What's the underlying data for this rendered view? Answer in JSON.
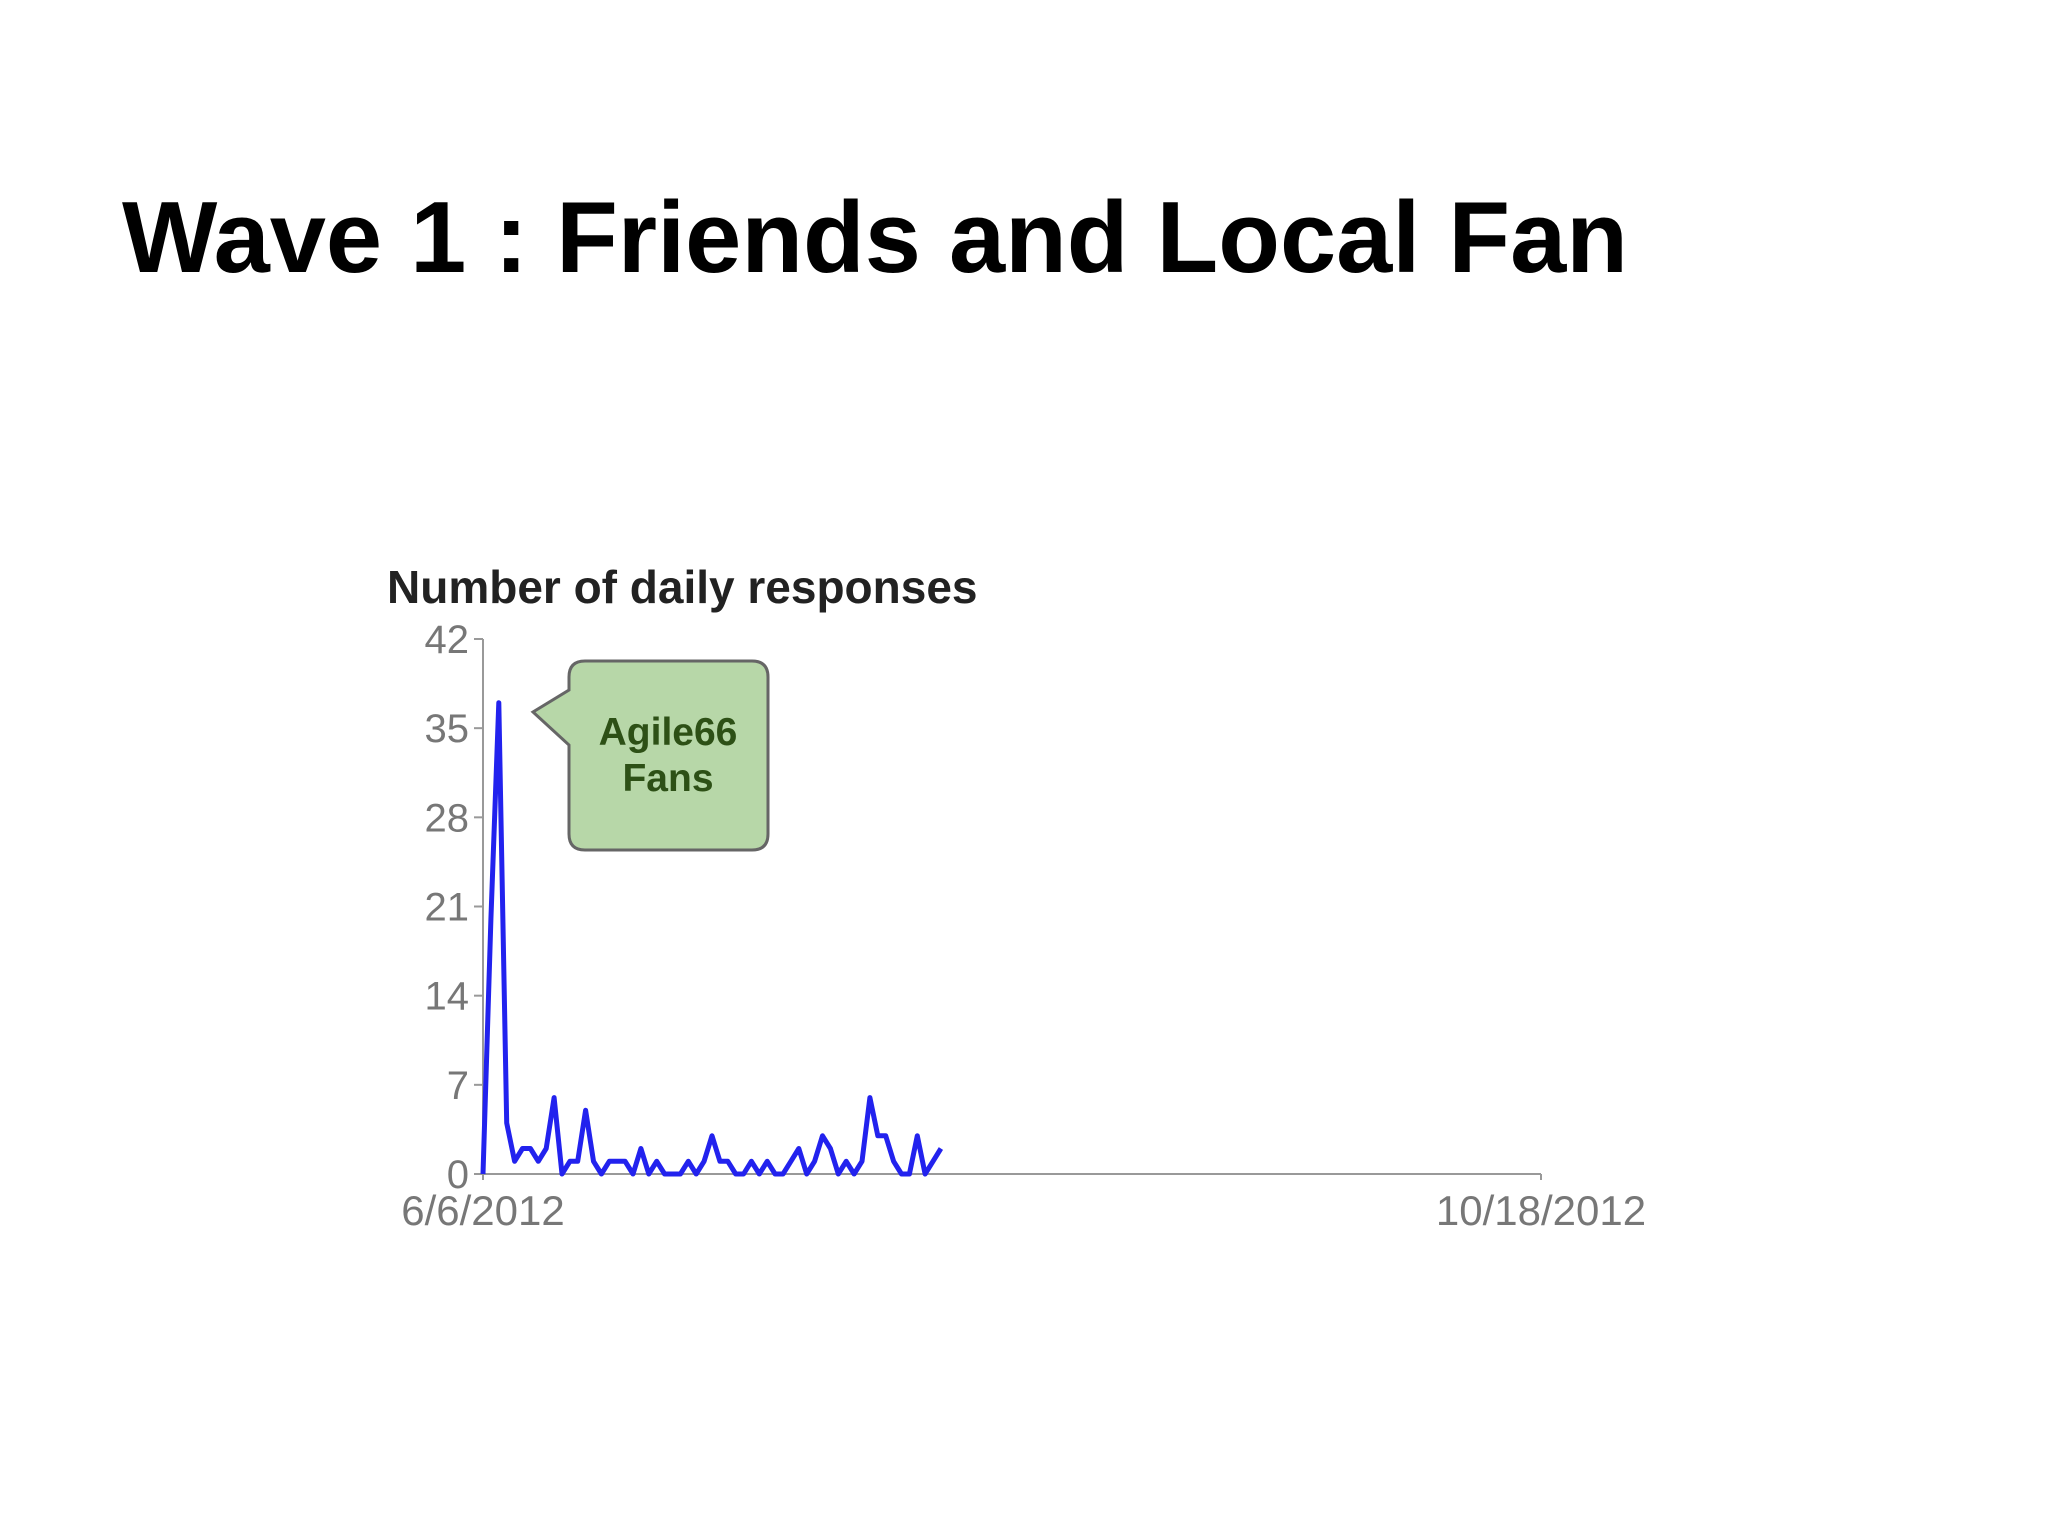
{
  "title": "Wave 1 : Friends and Local Fan",
  "chart_data": {
    "type": "line",
    "title": "Number of daily responses",
    "x": [
      0,
      1,
      2,
      3,
      4,
      5,
      6,
      7,
      8,
      9,
      10,
      11,
      12,
      13,
      14,
      15,
      16,
      17,
      18,
      19,
      20,
      21,
      22,
      23,
      24,
      25,
      26,
      27,
      28,
      29,
      30,
      31,
      32,
      33,
      34,
      35,
      36,
      37,
      38,
      39,
      40,
      41,
      42,
      43,
      44,
      45,
      46,
      47,
      48,
      49,
      50,
      51,
      52,
      53,
      54,
      55,
      56,
      57,
      58
    ],
    "values": [
      0,
      20,
      37,
      4,
      1,
      2,
      2,
      1,
      2,
      6,
      0,
      1,
      1,
      5,
      1,
      0,
      1,
      1,
      1,
      0,
      2,
      0,
      1,
      0,
      0,
      0,
      1,
      0,
      1,
      3,
      1,
      1,
      0,
      0,
      1,
      0,
      1,
      0,
      0,
      1,
      2,
      0,
      1,
      3,
      2,
      0,
      1,
      0,
      1,
      6,
      3,
      3,
      1,
      0,
      0,
      3,
      0,
      1,
      2
    ],
    "color": "#2222ee",
    "xlim": [
      0,
      134
    ],
    "xticks": [
      {
        "value": 0,
        "label": "6/6/2012"
      },
      {
        "value": 134,
        "label": "10/18/2012"
      }
    ],
    "ylim": [
      0,
      42
    ],
    "yticks": [
      0,
      7,
      14,
      21,
      28,
      35,
      42
    ],
    "annotation": [
      "Agile66",
      "Fans"
    ]
  }
}
